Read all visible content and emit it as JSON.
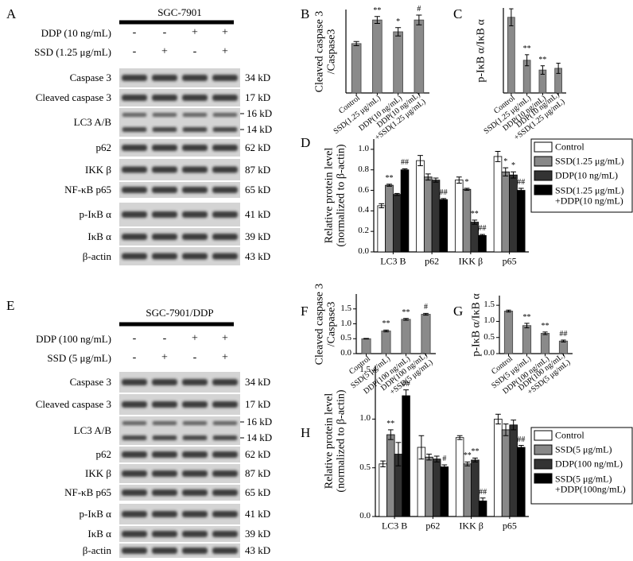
{
  "blots": [
    {
      "label": "A",
      "title": "SGC-7901",
      "treatments": [
        {
          "name": "DDP (10 ng/mL)",
          "signs": [
            "-",
            "-",
            "+",
            "+"
          ]
        },
        {
          "name": "SSD (1.25 μg/mL)",
          "signs": [
            "-",
            "+",
            "-",
            "+"
          ]
        }
      ],
      "proteins": [
        {
          "name": "Caspase 3",
          "sizes": [
            "34 kD"
          ]
        },
        {
          "name": "Cleaved caspase 3",
          "sizes": [
            "17 kD"
          ]
        },
        {
          "name": "LC3 A/B",
          "sizes": [
            "16 kD",
            "14 kD"
          ]
        },
        {
          "name": "p62",
          "sizes": [
            "62 kD"
          ]
        },
        {
          "name": "IKK β",
          "sizes": [
            "87 kD"
          ]
        },
        {
          "name": "NF-κB p65",
          "sizes": [
            "65 kD"
          ]
        },
        {
          "name": "p-IκB α",
          "sizes": [
            "41 kD"
          ]
        },
        {
          "name": "IκB α",
          "sizes": [
            "39 kD"
          ]
        },
        {
          "name": "β-actin",
          "sizes": [
            "43 kD"
          ]
        }
      ]
    },
    {
      "label": "E",
      "title": "SGC-7901/DDP",
      "treatments": [
        {
          "name": "DDP (100 ng/mL)",
          "signs": [
            "-",
            "-",
            "+",
            "+"
          ]
        },
        {
          "name": "SSD (5 μg/mL)",
          "signs": [
            "-",
            "+",
            "-",
            "+"
          ]
        }
      ],
      "proteins": [
        {
          "name": "Caspase 3",
          "sizes": [
            "34 kD"
          ]
        },
        {
          "name": "Cleaved caspase 3",
          "sizes": [
            "17 kD"
          ]
        },
        {
          "name": "LC3 A/B",
          "sizes": [
            "16 kD",
            "14 kD"
          ]
        },
        {
          "name": "p62",
          "sizes": [
            "62 kD"
          ]
        },
        {
          "name": "IKK β",
          "sizes": [
            "87 kD"
          ]
        },
        {
          "name": "NF-κB p65",
          "sizes": [
            "65 kD"
          ]
        },
        {
          "name": "p-IκB α",
          "sizes": [
            "41 kD"
          ]
        },
        {
          "name": "IκB α",
          "sizes": [
            "39 kD"
          ]
        },
        {
          "name": "β-actin",
          "sizes": [
            "43 kD"
          ]
        }
      ]
    }
  ],
  "chart_data": [
    {
      "label": "B",
      "type": "bar",
      "ylabel": "Cleaved caspase 3\n/Caspase3",
      "categories": [
        "Control",
        "SSD(1.25 μg/mL)",
        "DDP(10 ng/mL)",
        "DDP(10 ng/mL)\n+SSD(1.25 μg/mL)"
      ],
      "values": [
        0.71,
        1.05,
        0.88,
        1.05
      ],
      "errors": [
        0.03,
        0.05,
        0.06,
        0.07
      ],
      "annotations": [
        null,
        "**",
        "*",
        "#"
      ],
      "color": "#8a8a8a",
      "ylim": [
        0,
        1.2
      ]
    },
    {
      "label": "C",
      "type": "bar",
      "ylabel": "p-IκB α/IκB α",
      "categories": [
        "Control",
        "SSD(1.25 μg/mL)",
        "DDP(10 ng/mL)",
        "DDP(10 ng/mL)\n+SSD(1.25 μg/mL)"
      ],
      "values": [
        1.78,
        0.77,
        0.54,
        0.58
      ],
      "errors": [
        0.2,
        0.13,
        0.1,
        0.12
      ],
      "annotations": [
        null,
        "**",
        "**",
        null
      ],
      "color": "#8a8a8a",
      "ylim": [
        0,
        2
      ]
    },
    {
      "label": "D",
      "type": "bar",
      "ylabel": "Relative protein level\n(normalized to β-actin)",
      "categories": [
        "LC3 B",
        "p62",
        "IKK β",
        "p65"
      ],
      "series": [
        {
          "name": "Control",
          "color": "#ffffff",
          "values": [
            0.45,
            0.89,
            0.7,
            0.93
          ],
          "errors": [
            0.02,
            0.05,
            0.03,
            0.05
          ],
          "annotations": [
            null,
            null,
            null,
            null
          ]
        },
        {
          "name": "SSD(1.25 μg/mL)",
          "color": "#888888",
          "values": [
            0.65,
            0.73,
            0.61,
            0.78
          ],
          "errors": [
            0.01,
            0.03,
            0.01,
            0.04
          ],
          "annotations": [
            "**",
            null,
            "*",
            "*"
          ]
        },
        {
          "name": "DDP(10 ng/mL)",
          "color": "#333333",
          "values": [
            0.56,
            0.7,
            0.29,
            0.75
          ],
          "errors": [
            0.01,
            0.02,
            0.02,
            0.03
          ],
          "annotations": [
            null,
            null,
            "**",
            "*"
          ]
        },
        {
          "name": "SSD(1.25 μg/mL)\n+DDP(10 ng/mL)",
          "color": "#000000",
          "values": [
            0.8,
            0.51,
            0.16,
            0.6
          ],
          "errors": [
            0.01,
            0.01,
            0.01,
            0.02
          ],
          "annotations": [
            "##",
            "##",
            "##",
            "##"
          ]
        }
      ],
      "ylim": [
        0,
        1.1
      ],
      "yticks": [
        {
          "value": 0,
          "label": "0.0"
        },
        0.2,
        0.4,
        0.6,
        0.8,
        {
          "value": 1,
          "label": "1.0"
        }
      ],
      "legend": "right"
    },
    {
      "label": "F",
      "type": "bar",
      "ylabel": "Cleaved caspase 3\n/Caspase3",
      "categories": [
        "Control",
        "SSD(5 μg/mL)",
        "DDP(100 ng/mL)",
        "DDP(100 ng/mL)\n+SSD(5 μg/mL)"
      ],
      "values": [
        0.5,
        0.76,
        1.15,
        1.32
      ],
      "errors": [
        0.01,
        0.03,
        0.03,
        0.03
      ],
      "annotations": [
        null,
        "**",
        "**",
        "#"
      ],
      "color": "#8a8a8a",
      "ylim": [
        0,
        2
      ],
      "yticks": [
        {
          "value": 0,
          "label": "0.0"
        },
        0.5,
        {
          "value": 1,
          "label": "1.0"
        },
        1.5
      ]
    },
    {
      "label": "G",
      "type": "bar",
      "ylabel": "p-IκB α/IκB α",
      "categories": [
        "Control",
        "SSD(5 μg/mL)",
        "DDP(100 ng/mL)",
        "DDP(100 ng/mL)\n+SSD(5 μg/mL)"
      ],
      "values": [
        1.32,
        0.87,
        0.63,
        0.39
      ],
      "errors": [
        0.03,
        0.07,
        0.04,
        0.03
      ],
      "annotations": [
        null,
        "**",
        "**",
        "##"
      ],
      "color": "#8a8a8a",
      "ylim": [
        0,
        1.8
      ],
      "yticks": [
        {
          "value": 0,
          "label": "0.0"
        },
        0.5,
        {
          "value": 1,
          "label": "1.0"
        },
        1.5
      ]
    },
    {
      "label": "H",
      "type": "bar",
      "ylabel": "Relative protein level\n(normalized to β-actin)",
      "categories": [
        "LC3 B",
        "p62",
        "IKK β",
        "p65"
      ],
      "series": [
        {
          "name": "Control",
          "color": "#ffffff",
          "values": [
            0.54,
            0.71,
            0.81,
            1.0
          ],
          "errors": [
            0.03,
            0.12,
            0.02,
            0.05
          ],
          "annotations": [
            null,
            null,
            null,
            null
          ]
        },
        {
          "name": "SSD(5 μg/mL)",
          "color": "#888888",
          "values": [
            0.84,
            0.61,
            0.54,
            0.89
          ],
          "errors": [
            0.05,
            0.03,
            0.02,
            0.06
          ],
          "annotations": [
            "**",
            null,
            "**",
            null
          ]
        },
        {
          "name": "DDP(100 ng/mL)",
          "color": "#333333",
          "values": [
            0.64,
            0.59,
            0.58,
            0.94
          ],
          "errors": [
            0.12,
            0.03,
            0.02,
            0.05
          ],
          "annotations": [
            null,
            null,
            "**",
            null
          ]
        },
        {
          "name": "SSD(5 μg/mL)\n+DDP(100ng/mL)",
          "color": "#000000",
          "values": [
            1.24,
            0.51,
            0.16,
            0.71
          ],
          "errors": [
            0.06,
            0.02,
            0.03,
            0.02
          ],
          "annotations": [
            "##",
            "#",
            "##",
            "##"
          ]
        }
      ],
      "ylim": [
        0,
        1.55
      ],
      "yticks": [
        {
          "value": 0,
          "label": "0.0"
        },
        0.5,
        {
          "value": 1,
          "label": "1.0"
        },
        1.5
      ],
      "legend": "right"
    }
  ]
}
